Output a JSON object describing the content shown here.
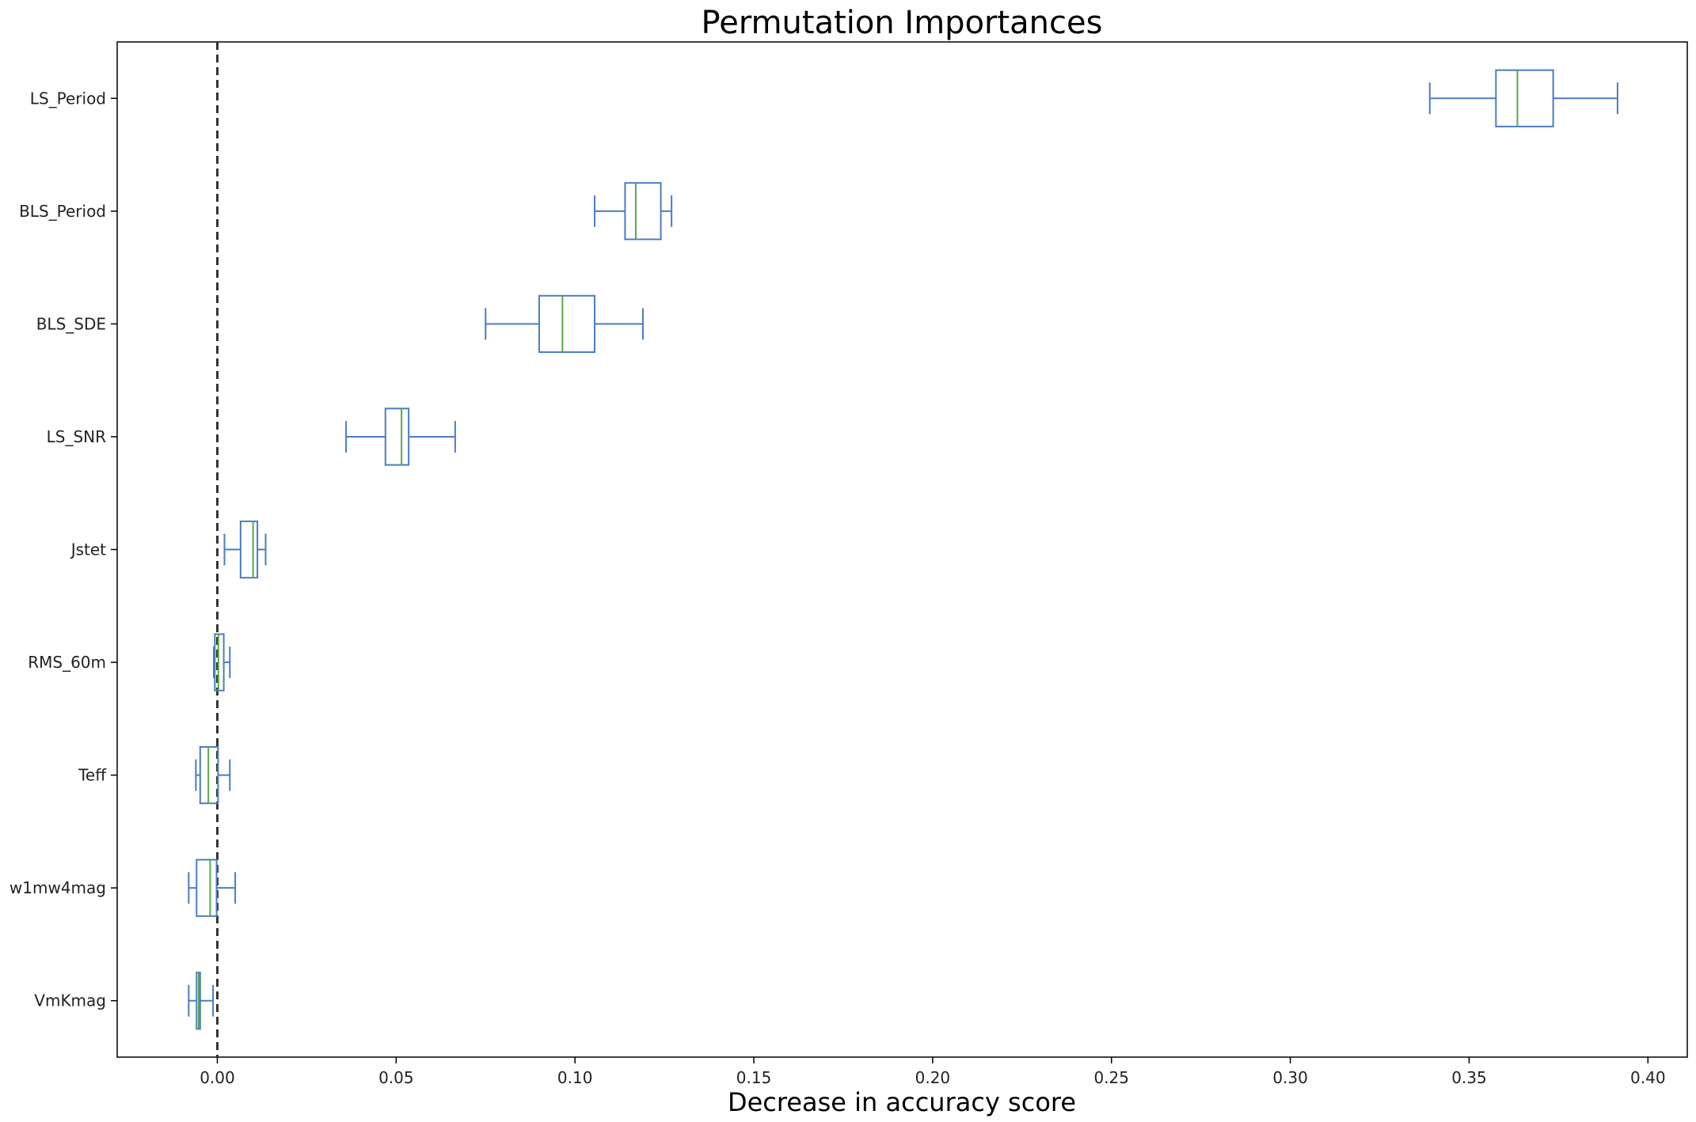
{
  "chart_data": {
    "type": "boxplot",
    "orientation": "horizontal",
    "title": "Permutation Importances",
    "xlabel": "Decrease in accuracy score",
    "ylabel": "",
    "xlim": [
      -0.028,
      0.411
    ],
    "xticks": [
      0.0,
      0.05,
      0.1,
      0.15,
      0.2,
      0.25,
      0.3,
      0.35,
      0.4
    ],
    "xtick_labels": [
      "0.00",
      "0.05",
      "0.10",
      "0.15",
      "0.20",
      "0.25",
      "0.30",
      "0.35",
      "0.40"
    ],
    "reference_line": {
      "x": 0.0,
      "style": "dashed",
      "color": "#333333"
    },
    "grid": false,
    "colors": {
      "box": "#4a7dbf",
      "median": "#5aa84a"
    },
    "categories": [
      "LS_Period",
      "BLS_Period",
      "BLS_SDE",
      "LS_SNR",
      "Jstet",
      "RMS_60m",
      "Teff",
      "w1mw4mag",
      "VmKmag"
    ],
    "boxes": [
      {
        "label": "LS_Period",
        "whisker_low": 0.339,
        "q1": 0.3575,
        "median": 0.3635,
        "q3": 0.3735,
        "whisker_high": 0.3915
      },
      {
        "label": "BLS_Period",
        "whisker_low": 0.1055,
        "q1": 0.114,
        "median": 0.117,
        "q3": 0.124,
        "whisker_high": 0.127
      },
      {
        "label": "BLS_SDE",
        "whisker_low": 0.075,
        "q1": 0.09,
        "median": 0.0965,
        "q3": 0.1055,
        "whisker_high": 0.119
      },
      {
        "label": "LS_SNR",
        "whisker_low": 0.036,
        "q1": 0.047,
        "median": 0.0515,
        "q3": 0.0535,
        "whisker_high": 0.0665
      },
      {
        "label": "Jstet",
        "whisker_low": 0.002,
        "q1": 0.0065,
        "median": 0.01,
        "q3": 0.0112,
        "whisker_high": 0.0135
      },
      {
        "label": "RMS_60m",
        "whisker_low": -0.001,
        "q1": -0.0007,
        "median": 0.0003,
        "q3": 0.0018,
        "whisker_high": 0.0035
      },
      {
        "label": "Teff",
        "whisker_low": -0.006,
        "q1": -0.0048,
        "median": -0.0025,
        "q3": 0.0002,
        "whisker_high": 0.0035
      },
      {
        "label": "w1mw4mag",
        "whisker_low": -0.008,
        "q1": -0.0058,
        "median": -0.002,
        "q3": -0.0002,
        "whisker_high": 0.005
      },
      {
        "label": "VmKmag",
        "whisker_low": -0.008,
        "q1": -0.0058,
        "median": -0.0052,
        "q3": -0.0048,
        "whisker_high": -0.0012
      }
    ]
  }
}
